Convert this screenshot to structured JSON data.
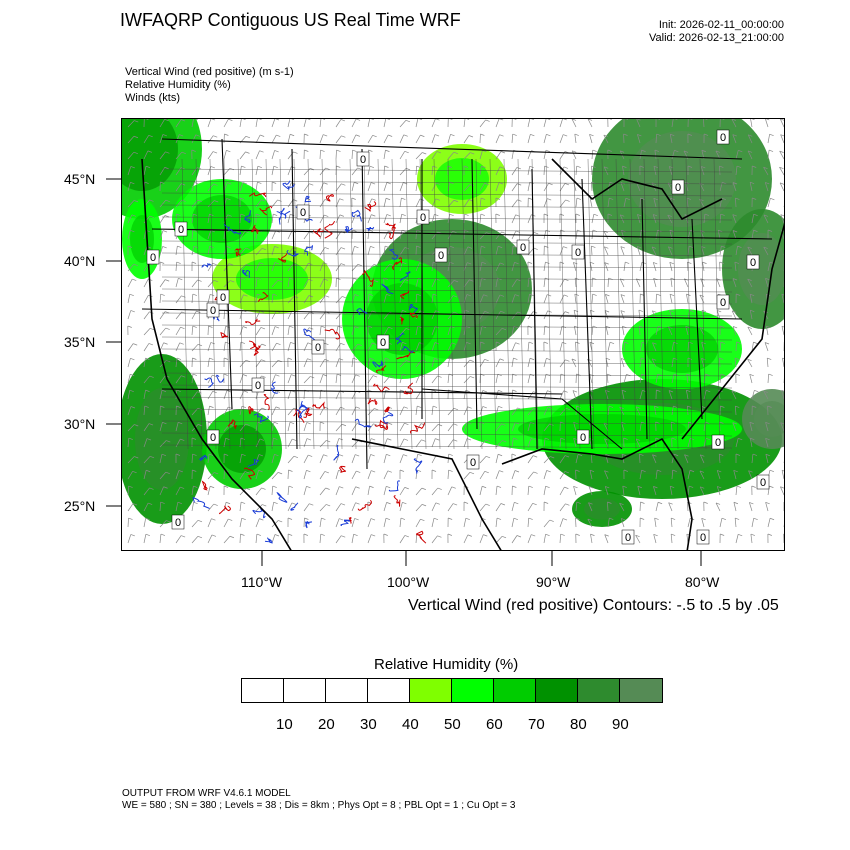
{
  "header": {
    "title": "IWFAQRP Contiguous US Real Time WRF",
    "init": "Init: 2026-02-11_00:00:00",
    "valid": "Valid: 2026-02-13_21:00:00"
  },
  "fields": [
    "Vertical Wind (red positive)   (m s-1)",
    "Relative Humidity   (%)",
    "Winds   (kts)"
  ],
  "lat_labels": [
    "45°N",
    "40°N",
    "35°N",
    "30°N",
    "25°N"
  ],
  "lon_labels": [
    "110°W",
    "100°W",
    "90°W",
    "80°W"
  ],
  "contour_note": "Vertical Wind (red positive) Contours: -.5 to .5 by .05",
  "colorbar": {
    "title": "Relative Humidity   (%)",
    "labels": [
      "10",
      "20",
      "30",
      "40",
      "50",
      "60",
      "70",
      "80",
      "90"
    ],
    "colors": [
      "#ffffff",
      "#ffffff",
      "#ffffff",
      "#ffffff",
      "#7fff00",
      "#00ff00",
      "#00cc00",
      "#009100",
      "#2e8b2e",
      "#558b55"
    ]
  },
  "zero_labels": [
    "0",
    "0",
    "0",
    "0",
    "0",
    "0",
    "0",
    "0",
    "0",
    "0",
    "0",
    "0",
    "0",
    "0",
    "0",
    "0",
    "0",
    "0",
    "0",
    "0",
    "0",
    "0",
    "0",
    "0",
    "0"
  ],
  "footer": {
    "line1": "OUTPUT FROM WRF V4.6.1 MODEL",
    "line2": "WE = 580 ; SN = 380 ; Levels = 38 ; Dis = 8km ; Phys Opt = 8 ; PBL Opt = 1 ; Cu Opt = 3"
  }
}
